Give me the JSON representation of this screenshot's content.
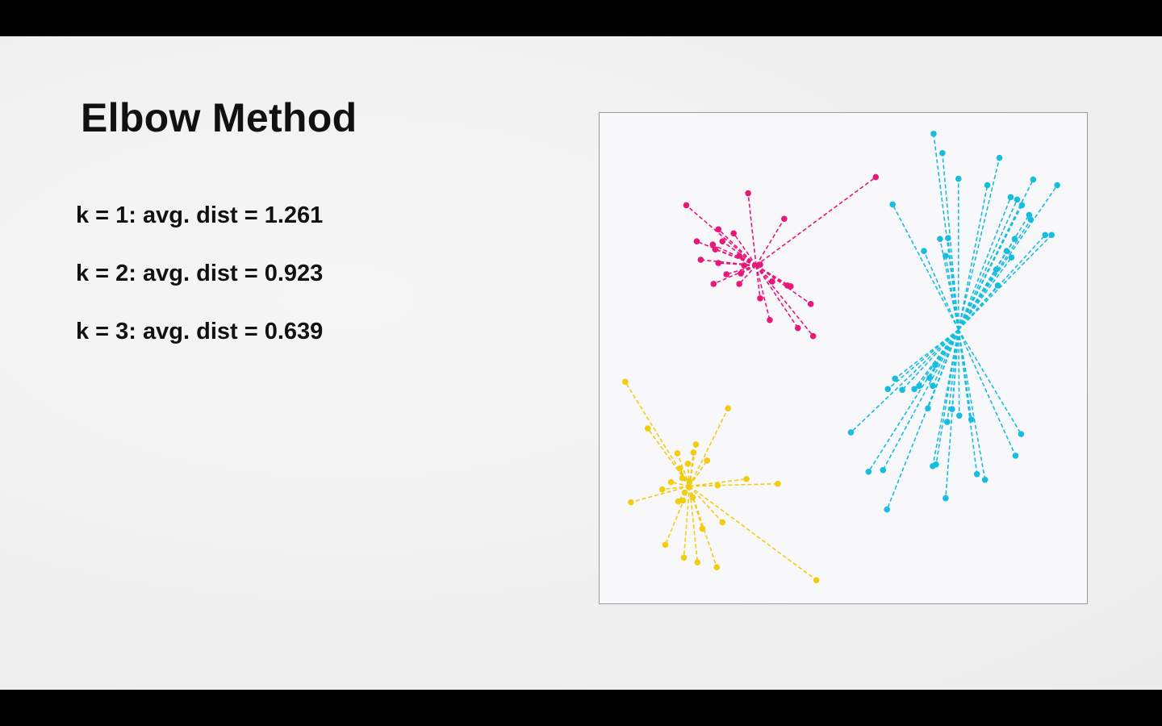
{
  "slide": {
    "title": "Elbow Method",
    "stats": [
      "k = 1: avg. dist = 1.261",
      "k = 2: avg. dist = 0.923",
      "k = 3: avg. dist = 0.639"
    ]
  },
  "chart_data": {
    "type": "scatter",
    "xlim": [
      0,
      606
    ],
    "ylim": [
      0,
      610
    ],
    "y_inverted": true,
    "grid": false,
    "clusters": [
      {
        "name": "magenta",
        "color": "#e8177a",
        "centroid": [
          195,
          190
        ],
        "points": [
          [
            344,
            80
          ],
          [
            108,
            115
          ],
          [
            185,
            100
          ],
          [
            230,
            132
          ],
          [
            148,
            145
          ],
          [
            167,
            150
          ],
          [
            153,
            160
          ],
          [
            141,
            164
          ],
          [
            121,
            160
          ],
          [
            144,
            170
          ],
          [
            126,
            183
          ],
          [
            148,
            187
          ],
          [
            174,
            178
          ],
          [
            180,
            190
          ],
          [
            200,
            189
          ],
          [
            176,
            200
          ],
          [
            158,
            201
          ],
          [
            174,
            213
          ],
          [
            142,
            213
          ],
          [
            215,
            210
          ],
          [
            234,
            215
          ],
          [
            238,
            216
          ],
          [
            200,
            231
          ],
          [
            263,
            238
          ],
          [
            212,
            258
          ],
          [
            247,
            268
          ],
          [
            266,
            278
          ]
        ]
      },
      {
        "name": "cyan",
        "color": "#16bde0",
        "centroid": [
          447,
          270
        ],
        "points": [
          [
            416,
            26
          ],
          [
            427,
            50
          ],
          [
            498,
            56
          ],
          [
            447,
            82
          ],
          [
            540,
            83
          ],
          [
            483,
            90
          ],
          [
            570,
            90
          ],
          [
            365,
            114
          ],
          [
            512,
            105
          ],
          [
            520,
            108
          ],
          [
            526,
            115
          ],
          [
            535,
            127
          ],
          [
            537,
            133
          ],
          [
            424,
            157
          ],
          [
            434,
            156
          ],
          [
            404,
            172
          ],
          [
            431,
            178
          ],
          [
            517,
            157
          ],
          [
            555,
            152
          ],
          [
            563,
            152
          ],
          [
            507,
            172
          ],
          [
            513,
            180
          ],
          [
            494,
            195
          ],
          [
            496,
            215
          ],
          [
            368,
            331
          ],
          [
            359,
            344
          ],
          [
            377,
            345
          ],
          [
            392,
            344
          ],
          [
            398,
            340
          ],
          [
            411,
            330
          ],
          [
            415,
            340
          ],
          [
            418,
            314
          ],
          [
            433,
            385
          ],
          [
            313,
            398
          ],
          [
            409,
            368
          ],
          [
            439,
            369
          ],
          [
            448,
            377
          ],
          [
            463,
            382
          ],
          [
            415,
            440
          ],
          [
            419,
            438
          ],
          [
            525,
            400
          ],
          [
            518,
            427
          ],
          [
            335,
            447
          ],
          [
            353,
            445
          ],
          [
            470,
            450
          ],
          [
            480,
            457
          ],
          [
            431,
            480
          ],
          [
            358,
            494
          ]
        ]
      },
      {
        "name": "yellow",
        "color": "#f1cc0f",
        "centroid": [
          112,
          465
        ],
        "points": [
          [
            32,
            335
          ],
          [
            160,
            368
          ],
          [
            60,
            393
          ],
          [
            120,
            413
          ],
          [
            117,
            423
          ],
          [
            134,
            433
          ],
          [
            97,
            424
          ],
          [
            110,
            437
          ],
          [
            100,
            443
          ],
          [
            103,
            455
          ],
          [
            112,
            459
          ],
          [
            147,
            464
          ],
          [
            183,
            456
          ],
          [
            222,
            462
          ],
          [
            78,
            469
          ],
          [
            89,
            460
          ],
          [
            111,
            466
          ],
          [
            106,
            473
          ],
          [
            39,
            485
          ],
          [
            104,
            483
          ],
          [
            116,
            479
          ],
          [
            98,
            484
          ],
          [
            153,
            510
          ],
          [
            128,
            518
          ],
          [
            82,
            538
          ],
          [
            105,
            554
          ],
          [
            122,
            560
          ],
          [
            146,
            566
          ],
          [
            270,
            582
          ]
        ]
      }
    ]
  }
}
